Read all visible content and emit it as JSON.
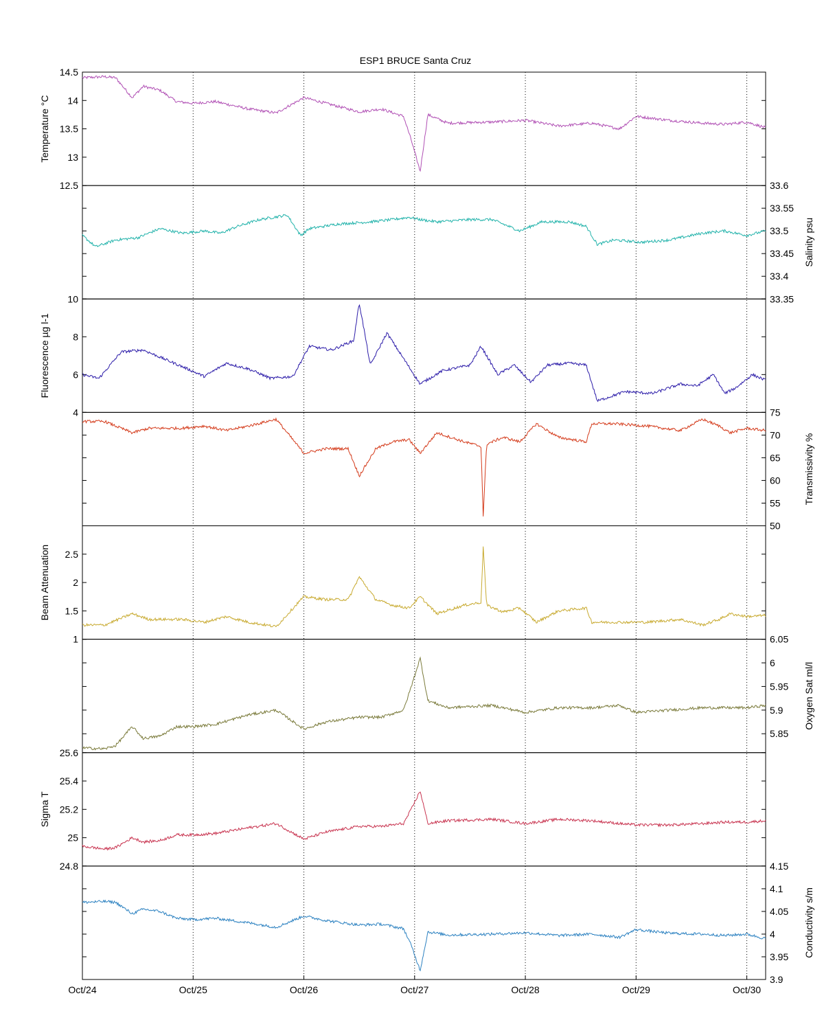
{
  "chart_data": [
    {
      "type": "line",
      "title": "ESP1 BRUCE Santa Cruz",
      "shared_x": true,
      "x_ticks": [
        "Oct/24",
        "Oct/25",
        "Oct/26",
        "Oct/27",
        "Oct/28",
        "Oct/29",
        "Oct/30"
      ],
      "x_range_days": [
        0,
        6.17
      ],
      "grid": "vertical dotted at each day",
      "panels": [
        {
          "id": "temperature",
          "ylabel": "Temperature °C",
          "axis_side": "left",
          "ylim": [
            12.5,
            14.5
          ],
          "yticks": [
            "12.5",
            "13",
            "13.5",
            "14",
            "14.5"
          ],
          "color": "#b04fb4",
          "series": [
            {
              "x": [
                0,
                0.2,
                0.3,
                0.45,
                0.55,
                0.7,
                0.85,
                1.0,
                1.2,
                1.5,
                1.75,
                2.0,
                2.2,
                2.5,
                2.7,
                2.9,
                2.97,
                3.05,
                3.12,
                3.3,
                3.7,
                4.0,
                4.3,
                4.6,
                4.85,
                5.0,
                5.3,
                5.6,
                5.8,
                6.0,
                6.17
              ],
              "y": [
                14.4,
                14.42,
                14.4,
                14.05,
                14.25,
                14.18,
                13.98,
                13.95,
                13.98,
                13.85,
                13.78,
                14.05,
                13.95,
                13.8,
                13.85,
                13.72,
                13.3,
                12.75,
                13.75,
                13.6,
                13.62,
                13.65,
                13.55,
                13.6,
                13.5,
                13.72,
                13.65,
                13.6,
                13.58,
                13.62,
                13.52
              ]
            }
          ]
        },
        {
          "id": "salinity",
          "ylabel": "Salinity psu",
          "axis_side": "right",
          "ylim": [
            33.35,
            33.6
          ],
          "yticks": [
            "33.35",
            "33.4",
            "33.45",
            "33.5",
            "33.55",
            "33.6"
          ],
          "color": "#20b2aa",
          "series": [
            {
              "x": [
                0,
                0.12,
                0.3,
                0.5,
                0.7,
                0.9,
                1.1,
                1.25,
                1.4,
                1.6,
                1.85,
                1.97,
                2.05,
                2.3,
                2.6,
                2.8,
                2.95,
                3.05,
                3.2,
                3.5,
                3.7,
                3.95,
                4.15,
                4.4,
                4.55,
                4.65,
                4.8,
                5.05,
                5.3,
                5.6,
                5.8,
                6.0,
                6.17
              ],
              "y": [
                33.49,
                33.465,
                33.48,
                33.485,
                33.505,
                33.495,
                33.5,
                33.495,
                33.51,
                33.525,
                33.535,
                33.49,
                33.505,
                33.515,
                33.52,
                33.525,
                33.53,
                33.525,
                33.52,
                33.525,
                33.525,
                33.5,
                33.52,
                33.52,
                33.51,
                33.47,
                33.48,
                33.475,
                33.48,
                33.495,
                33.5,
                33.49,
                33.5
              ]
            }
          ]
        },
        {
          "id": "fluorescence",
          "ylabel": "Fluorescence µg l-1",
          "axis_side": "left",
          "ylim": [
            4,
            10
          ],
          "yticks": [
            "4",
            "6",
            "8",
            "10"
          ],
          "color": "#2a1aa8",
          "series": [
            {
              "x": [
                0,
                0.15,
                0.35,
                0.55,
                0.75,
                0.95,
                1.1,
                1.3,
                1.5,
                1.7,
                1.9,
                2.05,
                2.25,
                2.45,
                2.5,
                2.6,
                2.75,
                2.95,
                3.05,
                3.25,
                3.5,
                3.6,
                3.75,
                3.9,
                4.05,
                4.2,
                4.4,
                4.55,
                4.65,
                4.9,
                5.15,
                5.4,
                5.55,
                5.7,
                5.8,
                5.9,
                6.05,
                6.17
              ],
              "y": [
                6.0,
                5.8,
                7.2,
                7.3,
                6.8,
                6.3,
                5.9,
                6.6,
                6.3,
                5.8,
                5.9,
                7.5,
                7.3,
                7.8,
                9.8,
                6.5,
                8.2,
                6.4,
                5.5,
                6.2,
                6.5,
                7.5,
                6.0,
                6.5,
                5.6,
                6.5,
                6.6,
                6.5,
                4.6,
                5.1,
                5.0,
                5.5,
                5.4,
                6.0,
                5.0,
                5.3,
                6.0,
                5.7
              ]
            }
          ]
        },
        {
          "id": "transmissivity",
          "ylabel": "Transmissivity %",
          "axis_side": "right",
          "ylim": [
            50,
            75
          ],
          "yticks": [
            "50",
            "55",
            "60",
            "65",
            "70",
            "75"
          ],
          "color": "#d43a1a",
          "series": [
            {
              "x": [
                0,
                0.2,
                0.45,
                0.6,
                0.9,
                1.1,
                1.3,
                1.5,
                1.75,
                1.95,
                2.0,
                2.2,
                2.4,
                2.5,
                2.65,
                2.8,
                2.95,
                3.05,
                3.2,
                3.45,
                3.6,
                3.62,
                3.65,
                3.8,
                3.95,
                4.1,
                4.3,
                4.55,
                4.6,
                4.8,
                5.1,
                5.4,
                5.6,
                5.75,
                5.85,
                6.0,
                6.17
              ],
              "y": [
                73,
                73,
                70.5,
                71.5,
                71.5,
                72,
                71,
                72,
                73.5,
                67.5,
                66,
                67,
                67,
                61,
                67,
                68.5,
                69,
                66,
                70.5,
                68.5,
                67.5,
                52,
                68,
                69.5,
                68.5,
                72.5,
                69.5,
                68.5,
                72.5,
                72.5,
                72,
                71,
                73.5,
                72,
                70.5,
                71.5,
                71
              ]
            }
          ]
        },
        {
          "id": "beam-attenuation",
          "ylabel": "Beam Attenuation",
          "axis_side": "left",
          "ylim": [
            1,
            3
          ],
          "yticks": [
            "1",
            "1.5",
            "2",
            "2.5"
          ],
          "color": "#c8aa30",
          "series": [
            {
              "x": [
                0,
                0.2,
                0.45,
                0.6,
                0.9,
                1.1,
                1.3,
                1.5,
                1.75,
                1.95,
                2.0,
                2.2,
                2.4,
                2.5,
                2.65,
                2.8,
                2.95,
                3.05,
                3.2,
                3.45,
                3.6,
                3.62,
                3.65,
                3.8,
                3.95,
                4.1,
                4.3,
                4.55,
                4.6,
                4.8,
                5.1,
                5.4,
                5.6,
                5.75,
                5.85,
                6.0,
                6.17
              ],
              "y": [
                1.25,
                1.25,
                1.45,
                1.35,
                1.35,
                1.3,
                1.4,
                1.3,
                1.22,
                1.65,
                1.75,
                1.7,
                1.7,
                2.1,
                1.7,
                1.6,
                1.55,
                1.75,
                1.45,
                1.6,
                1.65,
                2.65,
                1.6,
                1.48,
                1.55,
                1.3,
                1.5,
                1.55,
                1.3,
                1.3,
                1.3,
                1.35,
                1.25,
                1.35,
                1.45,
                1.4,
                1.42
              ]
            }
          ]
        },
        {
          "id": "oxygen",
          "ylabel": "Oxygen Sat ml/l",
          "axis_side": "right",
          "ylim": [
            5.81,
            6.05
          ],
          "yticks": [
            "5.85",
            "5.9",
            "5.95",
            "6",
            "6.05"
          ],
          "color": "#7a7a3a",
          "series": [
            {
              "x": [
                0,
                0.2,
                0.3,
                0.45,
                0.55,
                0.7,
                0.85,
                1.0,
                1.2,
                1.5,
                1.75,
                2.0,
                2.2,
                2.5,
                2.7,
                2.9,
                2.97,
                3.05,
                3.12,
                3.3,
                3.7,
                4.0,
                4.3,
                4.6,
                4.85,
                5.0,
                5.3,
                5.6,
                5.8,
                6.0,
                6.17
              ],
              "y": [
                5.82,
                5.818,
                5.825,
                5.865,
                5.84,
                5.845,
                5.865,
                5.865,
                5.87,
                5.89,
                5.9,
                5.86,
                5.875,
                5.885,
                5.885,
                5.9,
                5.95,
                6.01,
                5.92,
                5.905,
                5.91,
                5.895,
                5.905,
                5.905,
                5.91,
                5.895,
                5.9,
                5.905,
                5.905,
                5.905,
                5.91
              ]
            }
          ]
        },
        {
          "id": "sigma-t",
          "ylabel": "Sigma T",
          "axis_side": "left",
          "ylim": [
            24.8,
            25.6
          ],
          "yticks": [
            "24.8",
            "25",
            "25.2",
            "25.4",
            "25.6"
          ],
          "color": "#c8334f",
          "series": [
            {
              "x": [
                0,
                0.2,
                0.3,
                0.45,
                0.55,
                0.7,
                0.85,
                1.0,
                1.2,
                1.5,
                1.75,
                2.0,
                2.2,
                2.5,
                2.7,
                2.9,
                2.97,
                3.05,
                3.12,
                3.3,
                3.7,
                4.0,
                4.3,
                4.6,
                4.85,
                5.0,
                5.3,
                5.6,
                5.8,
                6.0,
                6.17
              ],
              "y": [
                24.94,
                24.92,
                24.93,
                25.0,
                24.97,
                24.98,
                25.02,
                25.02,
                25.03,
                25.07,
                25.1,
                24.99,
                25.04,
                25.08,
                25.08,
                25.1,
                25.2,
                25.33,
                25.1,
                25.12,
                25.13,
                25.1,
                25.13,
                25.12,
                25.1,
                25.09,
                25.09,
                25.1,
                25.11,
                25.11,
                25.12
              ]
            }
          ]
        },
        {
          "id": "conductivity",
          "ylabel": "Conductivity s/m",
          "axis_side": "right",
          "ylim": [
            3.9,
            4.15
          ],
          "yticks": [
            "3.9",
            "3.95",
            "4",
            "4.05",
            "4.1",
            "4.15"
          ],
          "color": "#2a80c0",
          "series": [
            {
              "x": [
                0,
                0.2,
                0.3,
                0.45,
                0.55,
                0.7,
                0.85,
                1.0,
                1.2,
                1.5,
                1.75,
                2.0,
                2.2,
                2.5,
                2.7,
                2.9,
                2.97,
                3.05,
                3.12,
                3.3,
                3.7,
                4.0,
                4.3,
                4.6,
                4.85,
                5.0,
                5.3,
                5.6,
                5.8,
                6.0,
                6.17
              ],
              "y": [
                4.07,
                4.072,
                4.07,
                4.045,
                4.055,
                4.05,
                4.035,
                4.032,
                4.035,
                4.025,
                4.015,
                4.04,
                4.03,
                4.02,
                4.022,
                4.012,
                3.975,
                3.92,
                4.005,
                3.998,
                4.0,
                4.003,
                3.997,
                4.0,
                3.993,
                4.01,
                4.002,
                4.0,
                3.997,
                4.0,
                3.99
              ]
            }
          ]
        }
      ]
    }
  ]
}
